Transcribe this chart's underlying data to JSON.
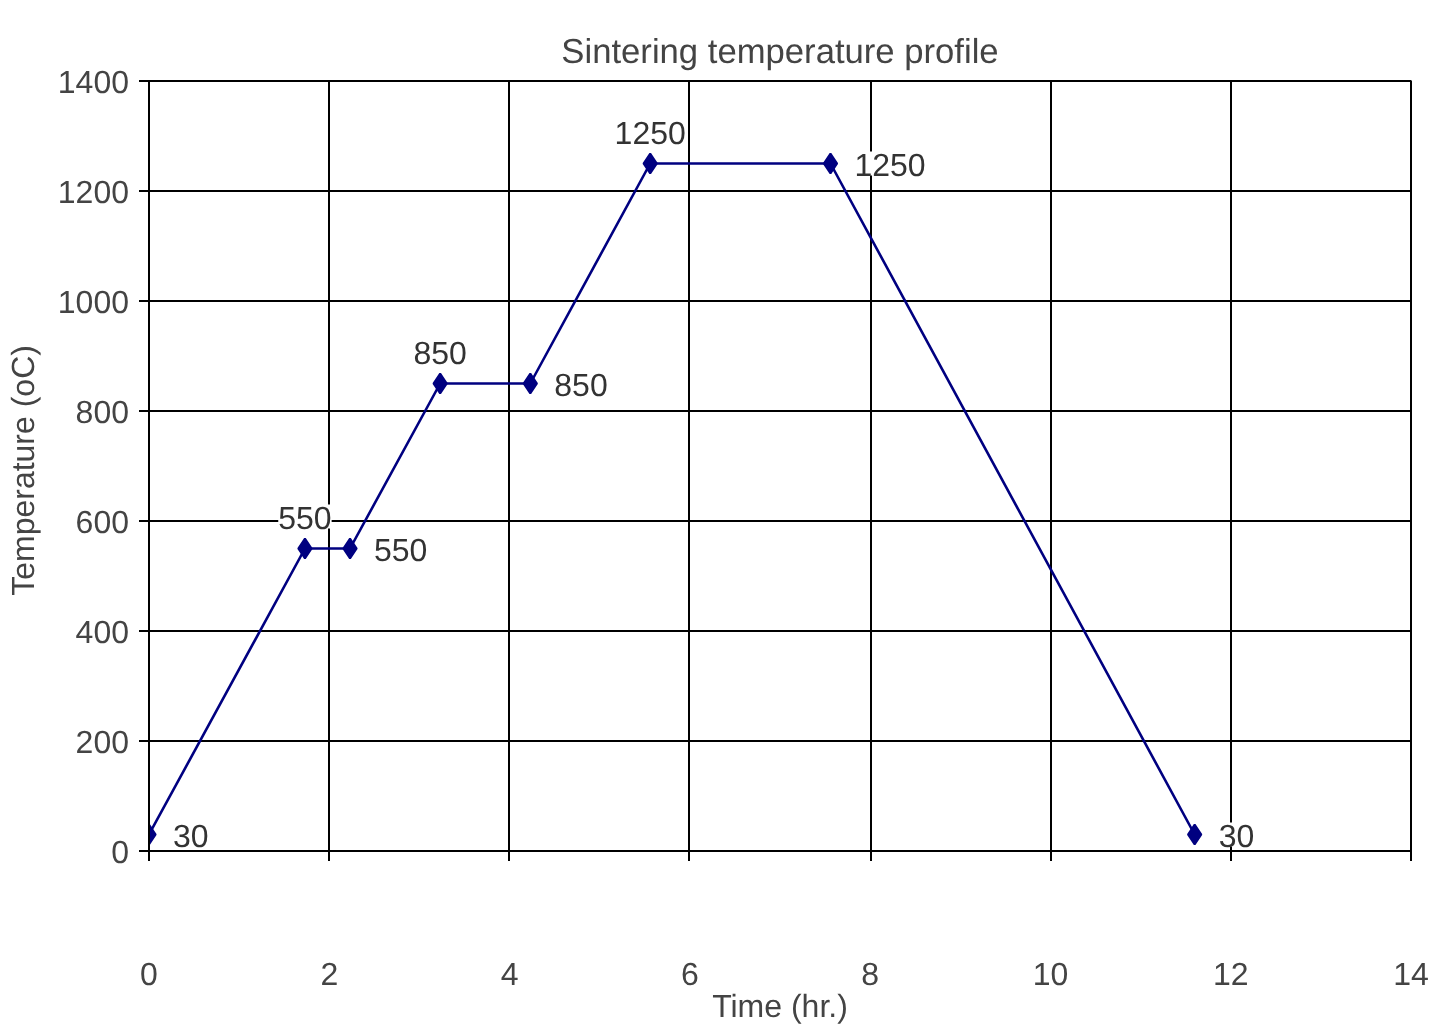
{
  "chart_data": {
    "type": "line",
    "title": "Sintering temperature profile",
    "xlabel": "Time (hr.)",
    "ylabel": "Temperature  (oC)",
    "x": [
      0,
      1.73,
      2.23,
      3.23,
      4.23,
      5.56,
      7.56,
      11.6
    ],
    "series": [
      {
        "color": "#000080",
        "values": [
          30,
          550,
          550,
          850,
          850,
          1250,
          1250,
          30
        ]
      }
    ],
    "xlim": [
      0,
      14
    ],
    "xticks": [
      0,
      2,
      4,
      6,
      8,
      10,
      12,
      14
    ],
    "ylim": [
      0,
      1400
    ],
    "yticks": [
      0,
      200,
      400,
      600,
      800,
      1000,
      1200,
      1400
    ],
    "grid": true,
    "marker": "diamond",
    "line_style": "solid",
    "data_labels": true
  }
}
